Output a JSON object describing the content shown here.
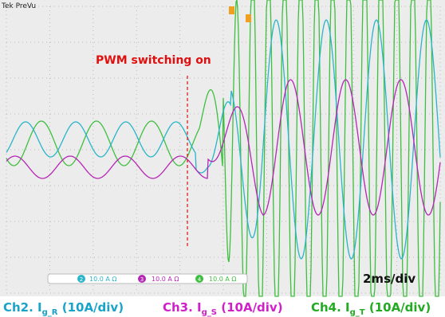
{
  "screen": {
    "label": "Tek PreVu",
    "annotation": "PWM switching on",
    "timebase": "2ms/div",
    "channels": [
      {
        "number": "2",
        "scale": "10.0 A Ω"
      },
      {
        "number": "3",
        "scale": "10.0 A Ω"
      },
      {
        "number": "4",
        "scale": "10.0 A Ω"
      }
    ]
  },
  "captions": [
    {
      "prefix": "Ch2. I",
      "subscript": "g_R",
      "suffix": " (10A/div)"
    },
    {
      "prefix": "Ch3. I",
      "subscript": "g_S",
      "suffix": " (10A/div)"
    },
    {
      "prefix": "Ch4. I",
      "subscript": "g_T",
      "suffix": " (10A/div)"
    }
  ]
}
